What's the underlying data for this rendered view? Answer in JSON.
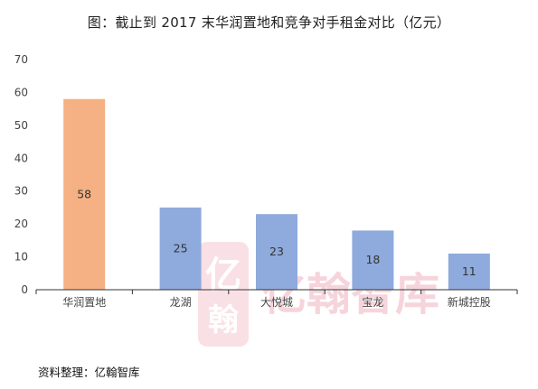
{
  "chart_data": {
    "type": "bar",
    "title": "图：截止到 2017 末华润置地和竞争对手租金对比（亿元）",
    "categories": [
      "华润置地",
      "龙湖",
      "大悦城",
      "宝龙",
      "新城控股"
    ],
    "values": [
      58,
      25,
      23,
      18,
      11
    ],
    "bar_colors": [
      "#F5B183",
      "#8FAADC",
      "#8FAADC",
      "#8FAADC",
      "#8FAADC"
    ],
    "ylim": [
      0,
      70
    ],
    "yticks": [
      0,
      10,
      20,
      30,
      40,
      50,
      60,
      70
    ],
    "xlabel": "",
    "ylabel": "",
    "grid": false,
    "data_labels": true
  },
  "source_text": "资料整理：亿翰智库",
  "watermark": {
    "icon_char": "亿",
    "icon_sub": "翰",
    "text": "亿翰智库",
    "color": "#F4C6CF"
  }
}
